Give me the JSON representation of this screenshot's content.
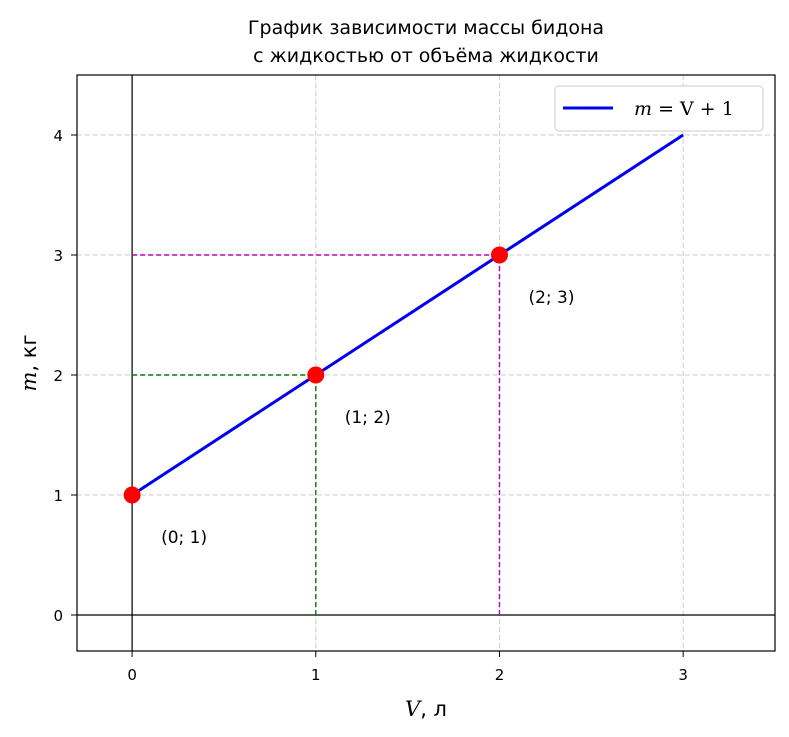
{
  "chart_data": {
    "type": "line",
    "title_lines": [
      "График зависимости массы бидона",
      "с жидкостью от объёма жидкости"
    ],
    "xlabel_var": "V",
    "xlabel_unit": ", л",
    "ylabel_var": "m",
    "ylabel_unit": ", кг",
    "xlim": [
      -0.3,
      3.5
    ],
    "ylim": [
      -0.3,
      4.5
    ],
    "xticks": [
      0,
      1,
      2,
      3
    ],
    "yticks": [
      0,
      1,
      2,
      3,
      4
    ],
    "grid": true,
    "legend_position": "top-right",
    "series": [
      {
        "legend_m": "m",
        "legend_rest": " = V + 1",
        "x": [
          0,
          3
        ],
        "y": [
          1,
          4
        ],
        "color": "#0000ee"
      }
    ],
    "points": [
      {
        "x": 0,
        "y": 1,
        "label": "(0;  1)"
      },
      {
        "x": 1,
        "y": 2,
        "label": "(1;  2)"
      },
      {
        "x": 2,
        "y": 3,
        "label": "(2;  3)"
      }
    ],
    "guides": [
      {
        "x": 1,
        "y": 2,
        "color": "#008000"
      },
      {
        "x": 2,
        "y": 3,
        "color": "#c000c0"
      }
    ],
    "point_color": "#ff0000",
    "grid_color": "#cccccc",
    "axes_lines_color": "#000000"
  }
}
